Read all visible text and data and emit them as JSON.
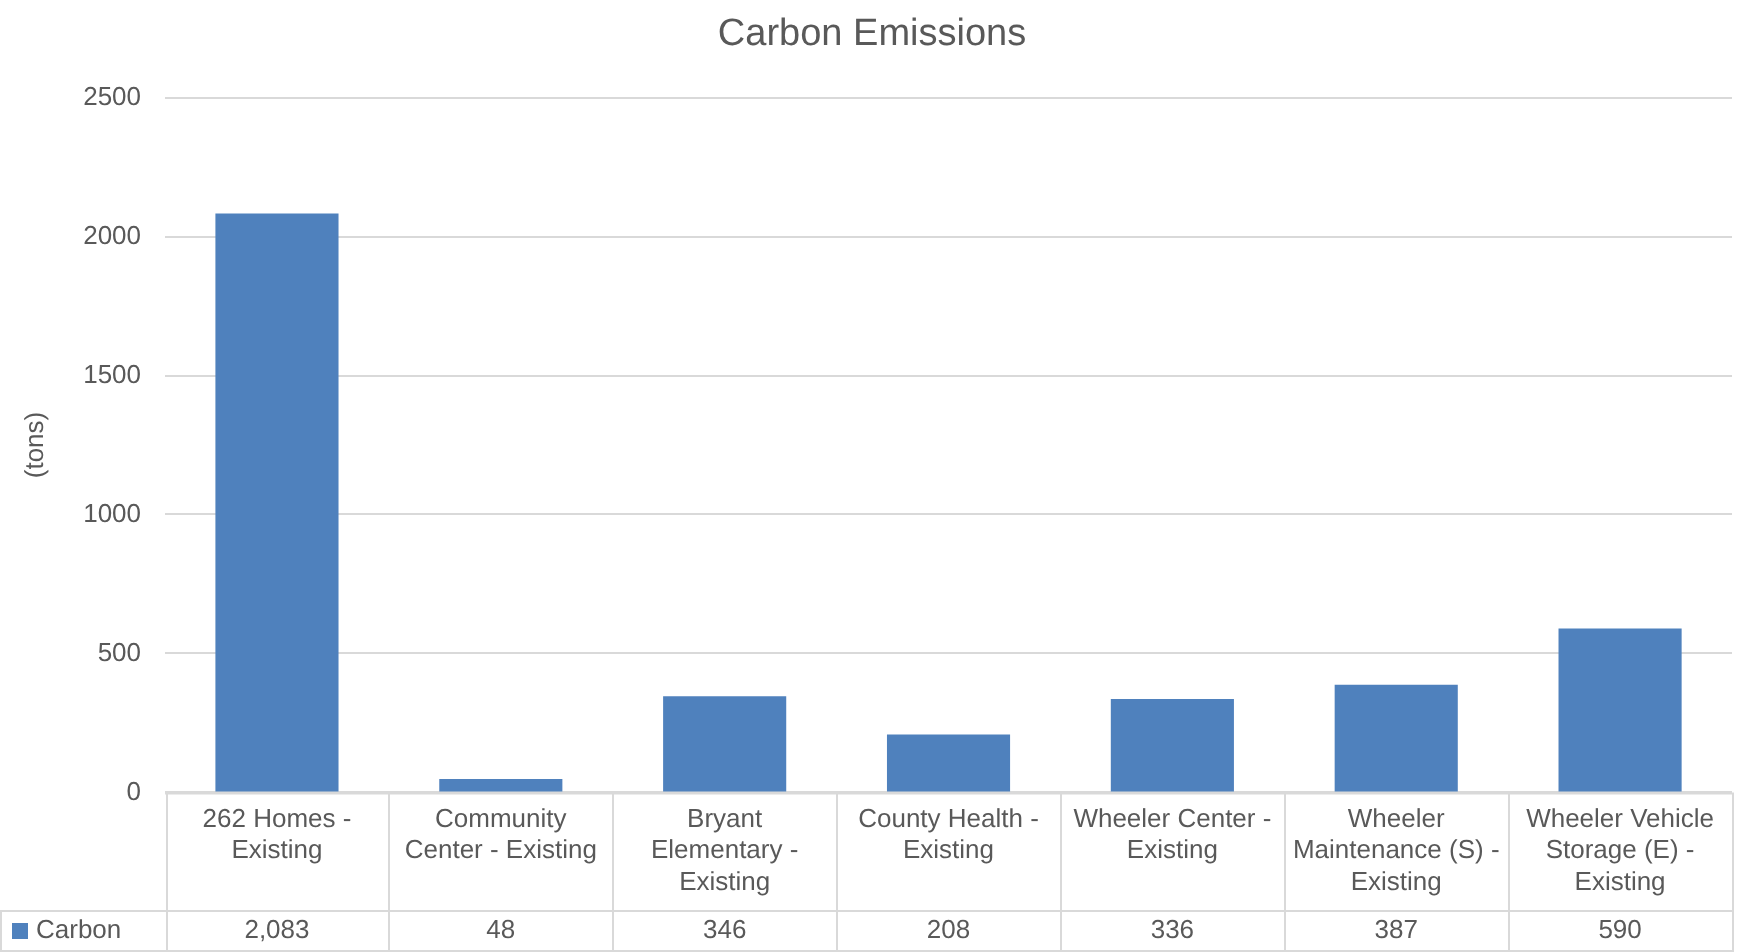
{
  "chart_data": {
    "type": "bar",
    "title": "Carbon Emissions",
    "ylabel": "(tons)",
    "categories": [
      "262 Homes - Existing",
      "Community Center - Existing",
      "Bryant Elementary - Existing",
      "County Health - Existing",
      "Wheeler Center - Existing",
      "Wheeler Maintenance (S) - Existing",
      "Wheeler Vehicle Storage (E) - Existing"
    ],
    "series": [
      {
        "name": "Carbon",
        "color": "#4f81bd",
        "values": [
          2083,
          48,
          346,
          208,
          336,
          387,
          590
        ],
        "value_labels": [
          "2,083",
          "48",
          "346",
          "208",
          "336",
          "387",
          "590"
        ]
      }
    ],
    "ylim": [
      0,
      2500
    ],
    "yticks": [
      0,
      500,
      1000,
      1500,
      2000,
      2500
    ],
    "grid": "y",
    "legend": "bottom"
  }
}
